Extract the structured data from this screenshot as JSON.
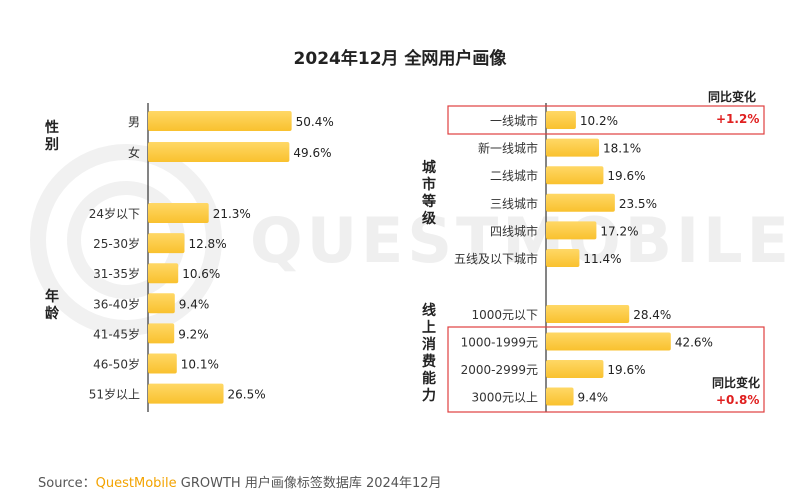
{
  "title": "2024年12月 全网用户画像",
  "source": {
    "prefix": "Source：",
    "brand": "QuestMobile",
    "rest": " GROWTH 用户画像标签数据库 2024年12月"
  },
  "watermark_text": "QUESTMOBILE",
  "colors": {
    "bar": "#f9c12e",
    "bar_light": "#ffd866",
    "axis": "#333333",
    "highlight_box": "#e04040",
    "positive_change": "#e02020"
  },
  "left_groups": {
    "gender": "性别",
    "age": "年龄"
  },
  "right_groups": {
    "city": "城市等级",
    "spend": "线上消费能力"
  },
  "yoy": {
    "header_label": "同比变化",
    "city_change": "+1.2%",
    "spend_change": "+0.8%"
  },
  "chart_data": [
    {
      "type": "bar",
      "orientation": "horizontal",
      "categories": [
        "男",
        "女"
      ],
      "values": [
        50.4,
        49.6
      ],
      "labels": [
        "50.4%",
        "49.6%"
      ],
      "unit": "%"
    },
    {
      "type": "bar",
      "orientation": "horizontal",
      "categories": [
        "24岁以下",
        "25-30岁",
        "31-35岁",
        "36-40岁",
        "41-45岁",
        "46-50岁",
        "51岁以上"
      ],
      "values": [
        21.3,
        12.8,
        10.6,
        9.4,
        9.2,
        10.1,
        26.5
      ],
      "labels": [
        "21.3%",
        "12.8%",
        "10.6%",
        "9.4%",
        "9.2%",
        "10.1%",
        "26.5%"
      ],
      "unit": "%"
    },
    {
      "type": "bar",
      "orientation": "horizontal",
      "categories": [
        "一线城市",
        "新一线城市",
        "二线城市",
        "三线城市",
        "四线城市",
        "五线及以下城市"
      ],
      "values": [
        10.2,
        18.1,
        19.6,
        23.5,
        17.2,
        11.4
      ],
      "labels": [
        "10.2%",
        "18.1%",
        "19.6%",
        "23.5%",
        "17.2%",
        "11.4%"
      ],
      "unit": "%"
    },
    {
      "type": "bar",
      "orientation": "horizontal",
      "categories": [
        "1000元以下",
        "1000-1999元",
        "2000-2999元",
        "3000元以上"
      ],
      "values": [
        28.4,
        42.6,
        19.6,
        9.4
      ],
      "labels": [
        "28.4%",
        "42.6%",
        "19.6%",
        "9.4%"
      ],
      "unit": "%"
    }
  ]
}
